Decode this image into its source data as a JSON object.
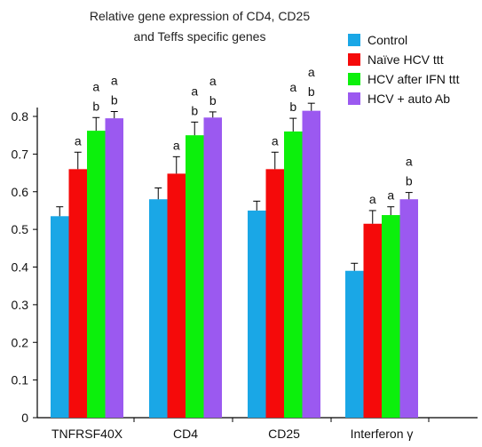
{
  "chart_data": {
    "type": "bar",
    "title_lines": [
      "Relative gene expression of CD4, CD25",
      "and Teffs specific genes"
    ],
    "xlabel": "",
    "ylabel": "",
    "ylim": [
      0,
      0.8
    ],
    "yticks": [
      "0",
      "0.1",
      "0.2",
      "0.3",
      "0.4",
      "0.5",
      "0.6",
      "0.7",
      "0.8"
    ],
    "grid": false,
    "legend_position": "top-right",
    "categories": [
      "TNFRSF40X",
      "CD4",
      "CD25",
      "Interferon γ"
    ],
    "series": [
      {
        "name": "Control",
        "color": "#1aa7e6",
        "values": [
          0.535,
          0.58,
          0.55,
          0.39
        ],
        "errors": [
          0.025,
          0.03,
          0.025,
          0.02
        ]
      },
      {
        "name": "Naïve HCV ttt",
        "color": "#f50a0a",
        "values": [
          0.66,
          0.648,
          0.66,
          0.515
        ],
        "errors": [
          0.045,
          0.045,
          0.045,
          0.035
        ]
      },
      {
        "name": "HCV after IFN ttt",
        "color": "#0cf00c",
        "values": [
          0.762,
          0.75,
          0.76,
          0.538
        ],
        "errors": [
          0.035,
          0.035,
          0.035,
          0.022
        ]
      },
      {
        "name": "HCV + auto Ab",
        "color": "#9b59f0",
        "values": [
          0.795,
          0.797,
          0.815,
          0.58
        ],
        "errors": [
          0.018,
          0.015,
          0.02,
          0.018
        ]
      }
    ],
    "annotations": [
      [
        "",
        "a",
        "ab",
        "ab"
      ],
      [
        "",
        "a",
        "ab",
        "ab"
      ],
      [
        "",
        "a",
        "ab",
        "ab"
      ],
      [
        "",
        "a",
        "a",
        "ab"
      ]
    ]
  }
}
